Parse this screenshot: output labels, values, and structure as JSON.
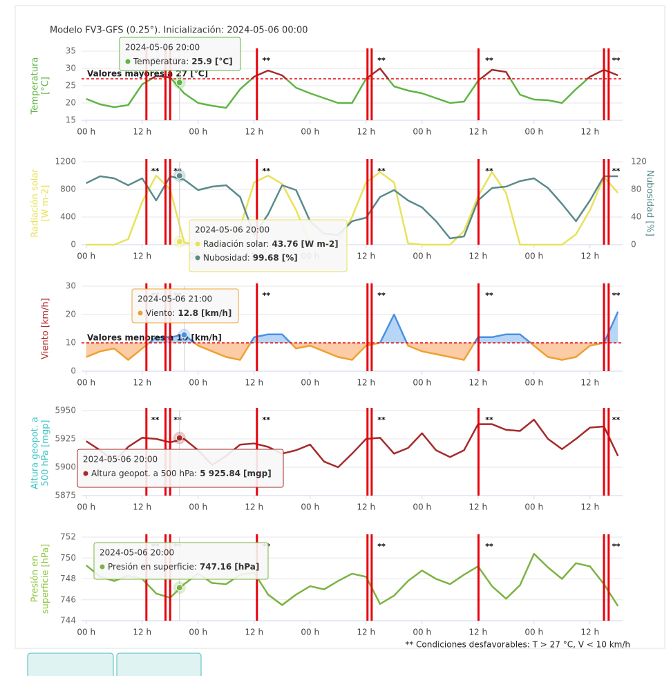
{
  "header": "Modelo FV3-GFS (0.25°). Inicialización: 2024-05-06 00:00",
  "footnote": "** Condiciones desfavorables: T > 27 °C, V < 10 km/h",
  "chart_data": [
    {
      "type": "line",
      "y_title": [
        "Temperatura",
        "[°C]"
      ],
      "title_color": "#5fb543",
      "x": [
        0,
        3,
        6,
        9,
        12,
        15,
        18,
        21,
        24,
        27,
        30,
        33,
        36,
        39,
        42,
        45,
        48,
        51,
        54,
        57,
        60,
        63,
        66,
        69,
        72,
        75,
        78,
        81,
        84,
        87,
        90,
        93,
        96,
        99,
        102,
        105,
        108,
        111,
        114
      ],
      "series": [
        {
          "name": "Temperatura",
          "color": "#5fb543",
          "values": [
            21.2,
            19.6,
            18.8,
            19.4,
            25.4,
            27.8,
            27.4,
            22.8,
            20,
            19.2,
            18.6,
            24,
            27.6,
            29.4,
            28,
            24.4,
            22.8,
            21.4,
            20,
            20,
            27,
            30,
            24.8,
            23.6,
            22.8,
            21.4,
            20,
            20.4,
            26.4,
            29.6,
            29,
            22.4,
            21,
            20.8,
            20,
            24,
            27.6,
            29.6,
            28
          ]
        }
      ],
      "threshold": {
        "value": 27,
        "label": "Valores mayores a 27 [°C]",
        "above_color": "#a52a2a"
      },
      "xlim": [
        -1,
        115
      ],
      "xticks": [
        {
          "value": 0,
          "label": "00 h"
        },
        {
          "value": 12,
          "label": "12 h"
        },
        {
          "value": 24,
          "label": "00 h"
        },
        {
          "value": 36,
          "label": "12 h"
        },
        {
          "value": 48,
          "label": "00 h"
        },
        {
          "value": 60,
          "label": "12 h"
        },
        {
          "value": 72,
          "label": "00 h"
        },
        {
          "value": 84,
          "label": "12 h"
        },
        {
          "value": 96,
          "label": "00 h"
        },
        {
          "value": 108,
          "label": "12 h"
        }
      ],
      "ylim": [
        15,
        35
      ],
      "yticks": [
        15,
        20,
        25,
        30,
        35
      ],
      "grid": true,
      "alerts": {
        "lines": [
          12.9,
          17,
          18,
          36.6,
          60.3,
          61.2,
          84.1,
          111,
          112
        ],
        "color": "#e8000b",
        "label": "**",
        "label_x": [
          14.8,
          19.6,
          38.6,
          63.3,
          86.4,
          113.6
        ]
      },
      "tooltip": {
        "title": "2024-05-06 20:00",
        "x": 20,
        "items": [
          {
            "label": "Temperatura:",
            "value": 25.9,
            "unit": "[°C]"
          }
        ]
      }
    },
    {
      "type": "line",
      "y_title": [
        "Radiación solar",
        "[W m-2]"
      ],
      "title_color": "#e8e25a",
      "y2_title": "Nubosidad [%]",
      "y2_title_color": "#5a8a8a",
      "x": [
        0,
        3,
        6,
        9,
        12,
        15,
        18,
        21,
        24,
        27,
        30,
        33,
        36,
        39,
        42,
        45,
        48,
        51,
        54,
        57,
        60,
        63,
        66,
        69,
        72,
        75,
        78,
        81,
        84,
        87,
        90,
        93,
        96,
        99,
        102,
        105,
        108,
        111,
        114
      ],
      "series": [
        {
          "name": "Radiación solar",
          "color": "#e8e25a",
          "values": [
            0,
            0,
            0,
            80,
            620,
            1000,
            800,
            30,
            0,
            0,
            0,
            250,
            900,
            1000,
            880,
            500,
            0,
            0,
            50,
            400,
            900,
            1050,
            900,
            20,
            0,
            0,
            0,
            200,
            700,
            1050,
            750,
            0,
            0,
            0,
            0,
            150,
            500,
            980,
            750
          ]
        },
        {
          "name": "Nubosidad",
          "color": "#5a8a8a",
          "axis": "y2",
          "values": [
            89,
            99,
            96,
            86,
            96,
            64,
            99,
            94,
            79,
            84,
            86,
            69,
            14,
            44,
            86,
            79,
            34,
            16,
            14,
            34,
            39,
            69,
            79,
            64,
            54,
            34,
            9,
            12,
            64,
            82,
            84,
            92,
            96,
            82,
            59,
            34,
            64,
            99,
            99
          ]
        }
      ],
      "xlim": [
        -1,
        115
      ],
      "xticks": [
        {
          "value": 0,
          "label": "00 h"
        },
        {
          "value": 12,
          "label": "12 h"
        },
        {
          "value": 24,
          "label": "00 h"
        },
        {
          "value": 36,
          "label": "12 h"
        },
        {
          "value": 48,
          "label": "00 h"
        },
        {
          "value": 60,
          "label": "12 h"
        },
        {
          "value": 72,
          "label": "00 h"
        },
        {
          "value": 84,
          "label": "12 h"
        },
        {
          "value": 96,
          "label": "00 h"
        },
        {
          "value": 108,
          "label": "12 h"
        }
      ],
      "ylim": [
        0,
        1200
      ],
      "yticks": [
        0,
        400,
        800,
        1200
      ],
      "y2lim": [
        0,
        120
      ],
      "y2ticks": [
        0,
        40,
        80,
        120
      ],
      "grid": true,
      "alerts": {
        "lines": [
          12.9,
          17,
          18,
          36.6,
          60.3,
          61.2,
          84.1,
          111,
          112
        ],
        "color": "#e8000b",
        "label": "**",
        "label_x": [
          14.8,
          19.6,
          38.6,
          63.3,
          86.4,
          113.6
        ]
      },
      "tooltip": {
        "title": "2024-05-06 20:00",
        "x": 20,
        "items": [
          {
            "label": "Radiación solar:",
            "value": 43.76,
            "unit": "[W m-2]"
          },
          {
            "label": "Nubosidad:",
            "value": 99.68,
            "unit": "[%]"
          }
        ]
      }
    },
    {
      "type": "line",
      "y_title": [
        "Viento [km/h]"
      ],
      "title_color": "#b22222",
      "x": [
        0,
        3,
        6,
        9,
        12,
        15,
        18,
        21,
        24,
        27,
        30,
        33,
        36,
        39,
        42,
        45,
        48,
        51,
        54,
        57,
        60,
        63,
        66,
        69,
        72,
        75,
        78,
        81,
        84,
        87,
        90,
        93,
        96,
        99,
        102,
        105,
        108,
        111,
        114
      ],
      "series": [
        {
          "name": "Viento",
          "color": "#f0a030",
          "values": [
            5,
            7,
            8,
            4,
            8,
            12,
            12,
            12.8,
            9,
            7,
            5,
            4,
            12,
            13,
            13,
            8,
            9,
            7,
            5,
            4,
            9,
            10,
            20,
            9,
            7,
            6,
            5,
            4,
            12,
            12,
            13,
            13,
            9,
            5,
            4,
            5,
            9,
            10,
            21
          ]
        }
      ],
      "threshold": {
        "value": 10,
        "label": "Valores menores a 10 [km/h]",
        "above_color": "#4a90e2",
        "fill_above": "#7cb5ec",
        "fill_below": "#f7a35c"
      },
      "xlim": [
        -1,
        115
      ],
      "xticks": [
        {
          "value": 0,
          "label": "00 h"
        },
        {
          "value": 12,
          "label": "12 h"
        },
        {
          "value": 24,
          "label": "00 h"
        },
        {
          "value": 36,
          "label": "12 h"
        },
        {
          "value": 48,
          "label": "00 h"
        },
        {
          "value": 60,
          "label": "12 h"
        },
        {
          "value": 72,
          "label": "00 h"
        },
        {
          "value": 84,
          "label": "12 h"
        },
        {
          "value": 96,
          "label": "00 h"
        },
        {
          "value": 108,
          "label": "12 h"
        }
      ],
      "ylim": [
        0,
        30
      ],
      "yticks": [
        0,
        10,
        20,
        30
      ],
      "grid": true,
      "alerts": {
        "lines": [
          12.9,
          17,
          18,
          36.6,
          60.3,
          61.2,
          84.1,
          111,
          112
        ],
        "color": "#e8000b",
        "label": "**",
        "label_x": [
          14.8,
          19.6,
          38.6,
          63.3,
          86.4,
          113.6
        ]
      },
      "tooltip": {
        "title": "2024-05-06 21:00",
        "x": 21,
        "items": [
          {
            "label": "Viento:",
            "value": 12.8,
            "unit": "[km/h]"
          }
        ]
      }
    },
    {
      "type": "line",
      "y_title": [
        "Altura geopot. a",
        "500 hPa [mgp]"
      ],
      "title_color": "#3cc6c6",
      "x": [
        0,
        3,
        6,
        9,
        12,
        15,
        18,
        21,
        24,
        27,
        30,
        33,
        36,
        39,
        42,
        45,
        48,
        51,
        54,
        57,
        60,
        63,
        66,
        69,
        72,
        75,
        78,
        81,
        84,
        87,
        90,
        93,
        96,
        99,
        102,
        105,
        108,
        111,
        114
      ],
      "series": [
        {
          "name": "Altura geopot. a 500 hPa",
          "color": "#a52a2a",
          "values": [
            5923,
            5915,
            5905,
            5918,
            5926,
            5925,
            5922,
            5925,
            5915,
            5902,
            5910,
            5920,
            5921,
            5918,
            5912,
            5915,
            5920,
            5905,
            5900,
            5912,
            5925,
            5926,
            5912,
            5917,
            5930,
            5915,
            5909,
            5915,
            5938,
            5938,
            5933,
            5932,
            5942,
            5925,
            5916,
            5925,
            5935,
            5936,
            5910
          ]
        }
      ],
      "xlim": [
        -1,
        115
      ],
      "xticks": [
        {
          "value": 0,
          "label": "00 h"
        },
        {
          "value": 12,
          "label": "12 h"
        },
        {
          "value": 24,
          "label": "00 h"
        },
        {
          "value": 36,
          "label": "12 h"
        },
        {
          "value": 48,
          "label": "00 h"
        },
        {
          "value": 60,
          "label": "12 h"
        },
        {
          "value": 72,
          "label": "00 h"
        },
        {
          "value": 84,
          "label": "12 h"
        },
        {
          "value": 96,
          "label": "00 h"
        },
        {
          "value": 108,
          "label": "12 h"
        }
      ],
      "ylim": [
        5875,
        5950
      ],
      "yticks": [
        5875,
        5900,
        5925,
        5950
      ],
      "grid": true,
      "alerts": {
        "lines": [
          12.9,
          17,
          18,
          36.6,
          60.3,
          61.2,
          84.1,
          111,
          112
        ],
        "color": "#e8000b",
        "label": "**",
        "label_x": [
          14.8,
          19.6,
          38.6,
          63.3,
          86.4,
          113.6
        ]
      },
      "tooltip": {
        "title": "2024-05-06 20:00",
        "x": 20,
        "items": [
          {
            "label": "Altura geopot. a 500 hPa:",
            "value": 5925.84,
            "value_label": "5 925.84",
            "unit": "[mgp]"
          }
        ]
      }
    },
    {
      "type": "line",
      "y_title": [
        "Presión en",
        "superficie [hPa]"
      ],
      "title_color": "#8cc63f",
      "x": [
        0,
        3,
        6,
        9,
        12,
        15,
        18,
        21,
        24,
        27,
        30,
        33,
        36,
        39,
        42,
        45,
        48,
        51,
        54,
        57,
        60,
        63,
        66,
        69,
        72,
        75,
        78,
        81,
        84,
        87,
        90,
        93,
        96,
        99,
        102,
        105,
        108,
        111,
        114
      ],
      "series": [
        {
          "name": "Presión en superficie",
          "color": "#7cb342",
          "values": [
            749.3,
            748.2,
            747.8,
            748.3,
            748,
            746.6,
            746.2,
            747.5,
            748.5,
            747.6,
            747.5,
            748.4,
            748.6,
            746.5,
            745.5,
            746.5,
            747.3,
            747,
            747.8,
            748.5,
            748.2,
            745.6,
            746.4,
            747.8,
            748.8,
            748,
            747.5,
            748.4,
            749.2,
            747.3,
            746.1,
            747.4,
            750.4,
            749.1,
            748,
            749.5,
            749.2,
            747.5,
            745.4
          ]
        }
      ],
      "xlim": [
        -1,
        115
      ],
      "xticks": [
        {
          "value": 0,
          "label": "00 h"
        },
        {
          "value": 12,
          "label": "12 h"
        },
        {
          "value": 24,
          "label": "00 h"
        },
        {
          "value": 36,
          "label": "12 h"
        },
        {
          "value": 48,
          "label": "00 h"
        },
        {
          "value": 60,
          "label": "12 h"
        },
        {
          "value": 72,
          "label": "00 h"
        },
        {
          "value": 84,
          "label": "12 h"
        },
        {
          "value": 96,
          "label": "00 h"
        },
        {
          "value": 108,
          "label": "12 h"
        }
      ],
      "ylim": [
        744,
        752
      ],
      "yticks": [
        744,
        746,
        748,
        750,
        752
      ],
      "grid": true,
      "alerts": {
        "lines": [
          12.9,
          17,
          18,
          36.6,
          60.3,
          61.2,
          84.1,
          111,
          112
        ],
        "color": "#e8000b",
        "label": "**",
        "label_x": [
          14.8,
          19.6,
          38.6,
          63.3,
          86.4,
          113.6
        ]
      },
      "tooltip": {
        "title": "2024-05-06 20:00",
        "x": 20,
        "items": [
          {
            "label": "Presión en superficie:",
            "value": 747.16,
            "unit": "[hPa]"
          }
        ]
      }
    }
  ]
}
